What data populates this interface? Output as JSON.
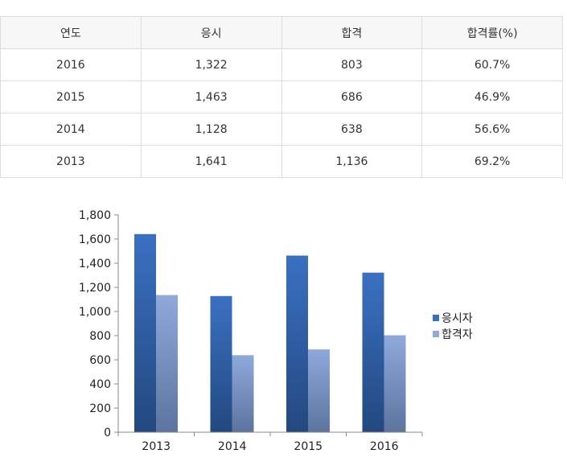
{
  "table": {
    "headers": [
      "연도",
      "응시",
      "합격",
      "합격률(%)"
    ],
    "rows": [
      [
        "2016",
        "1,322",
        "803",
        "60.7%"
      ],
      [
        "2015",
        "1,463",
        "686",
        "46.9%"
      ],
      [
        "2014",
        "1,128",
        "638",
        "56.6%"
      ],
      [
        "2013",
        "1,641",
        "1,136",
        "69.2%"
      ]
    ]
  },
  "colors": {
    "series1_top": "#3a70c2",
    "series1_bottom": "#23487f",
    "series2_top": "#8fa9dc",
    "series2_bottom": "#5c749e",
    "axis": "#888888",
    "tick_text": "#222222"
  },
  "chart_data": {
    "type": "bar",
    "categories": [
      "2013",
      "2014",
      "2015",
      "2016"
    ],
    "series": [
      {
        "name": "응시자",
        "values": [
          1641,
          1128,
          1463,
          1322
        ]
      },
      {
        "name": "합격자",
        "values": [
          1136,
          638,
          686,
          803
        ]
      }
    ],
    "ylim": [
      0,
      1800
    ],
    "yticks": [
      0,
      200,
      400,
      600,
      800,
      1000,
      1200,
      1400,
      1600,
      1800
    ],
    "ytick_labels": [
      "0",
      "200",
      "400",
      "600",
      "800",
      "1,000",
      "1,200",
      "1,400",
      "1,600",
      "1,800"
    ],
    "title": "",
    "xlabel": "",
    "ylabel": "",
    "grid": false,
    "legend": "right"
  }
}
